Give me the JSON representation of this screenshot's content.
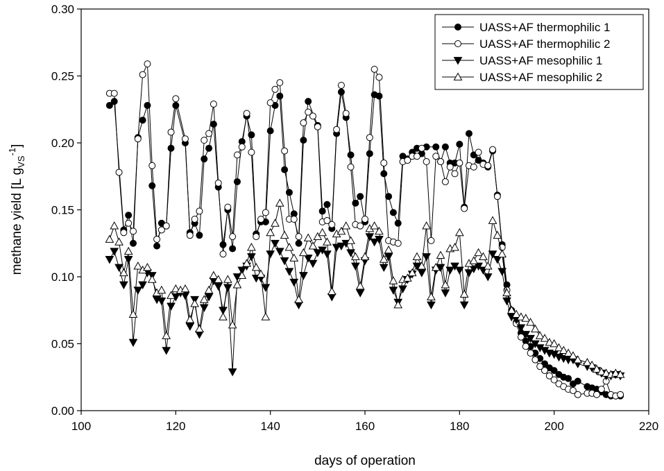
{
  "chart_data": {
    "type": "line",
    "xlabel": "days of operation",
    "ylabel": {
      "main": "methane yield [L g",
      "sub": "VS",
      "sup": "-1",
      "close": "]"
    },
    "xlim": [
      100,
      220
    ],
    "ylim": [
      0,
      0.3
    ],
    "xticks": [
      100,
      120,
      140,
      160,
      180,
      200,
      220
    ],
    "yticks": [
      {
        "value": 0,
        "label": "0.00"
      },
      {
        "value": 0.05,
        "label": "0.05"
      },
      {
        "value": 0.1,
        "label": "0.10"
      },
      {
        "value": 0.15,
        "label": "0.15"
      },
      {
        "value": 0.2,
        "label": "0.20"
      },
      {
        "value": 0.25,
        "label": "0.25"
      },
      {
        "value": 0.3,
        "label": "0.30"
      }
    ],
    "legend": "upper right",
    "series": [
      {
        "name": "UASS+AF thermophilic 1",
        "color": "#000000",
        "marker": "circle-filled",
        "x": [
          106,
          107,
          109,
          110,
          111,
          112,
          113,
          114,
          115,
          116,
          117,
          118,
          119,
          120,
          122,
          123,
          124,
          125,
          126,
          127,
          128,
          129,
          130,
          131,
          132,
          133,
          134,
          135,
          136,
          137,
          138,
          139,
          140,
          141,
          142,
          143,
          144,
          145,
          146,
          147,
          148,
          150,
          151,
          152,
          153,
          154,
          155,
          156,
          157,
          158,
          159,
          160,
          161,
          162,
          163,
          164,
          165,
          166,
          167,
          168,
          169,
          170,
          171,
          172,
          173,
          175,
          176,
          177,
          178,
          179,
          180,
          181,
          182,
          183,
          184,
          185,
          186,
          187,
          188,
          189,
          190,
          191,
          192,
          193,
          194,
          195,
          196,
          197,
          198,
          199,
          200,
          201,
          202,
          203,
          204,
          205,
          207,
          208,
          209,
          210,
          211,
          212,
          213,
          214
        ],
        "values": [
          0.228,
          0.231,
          0.135,
          0.146,
          0.125,
          0.204,
          0.217,
          0.228,
          0.168,
          0.123,
          0.14,
          0.138,
          0.196,
          0.228,
          0.2,
          0.133,
          0.14,
          0.131,
          0.188,
          0.196,
          0.214,
          0.167,
          0.124,
          0.15,
          0.121,
          0.171,
          0.201,
          0.22,
          0.206,
          0.132,
          0.141,
          0.141,
          0.209,
          0.228,
          0.235,
          0.18,
          0.163,
          0.147,
          0.125,
          0.202,
          0.231,
          0.213,
          0.149,
          0.154,
          0.136,
          0.207,
          0.238,
          0.219,
          0.191,
          0.155,
          0.16,
          0.141,
          0.192,
          0.236,
          0.235,
          0.177,
          0.16,
          0.148,
          0.14,
          0.19,
          0.188,
          0.193,
          0.196,
          0.192,
          0.197,
          0.197,
          0.186,
          0.197,
          0.185,
          0.185,
          0.199,
          0.152,
          0.207,
          0.191,
          0.187,
          0.185,
          0.182,
          0.194,
          0.161,
          0.124,
          0.094,
          0.075,
          0.066,
          0.058,
          0.052,
          0.048,
          0.043,
          0.039,
          0.035,
          0.032,
          0.03,
          0.027,
          0.025,
          0.024,
          0.02,
          0.022,
          0.018,
          0.017,
          0.016,
          0.014,
          0.012,
          0.011,
          0.011,
          0.011
        ]
      },
      {
        "name": "UASS+AF thermophilic 2",
        "color": "#000000",
        "marker": "circle-open",
        "x": [
          106,
          107,
          108,
          109,
          110,
          111,
          112,
          113,
          114,
          115,
          116,
          117,
          118,
          119,
          120,
          122,
          123,
          124,
          125,
          126,
          127,
          128,
          129,
          130,
          131,
          132,
          133,
          134,
          135,
          136,
          137,
          138,
          139,
          140,
          141,
          142,
          143,
          144,
          145,
          146,
          147,
          148,
          149,
          150,
          151,
          152,
          153,
          154,
          155,
          156,
          157,
          158,
          159,
          160,
          161,
          162,
          163,
          164,
          165,
          166,
          167,
          168,
          169,
          170,
          171,
          172,
          173,
          174,
          175,
          176,
          177,
          178,
          179,
          180,
          181,
          182,
          183,
          184,
          185,
          186,
          187,
          188,
          189,
          190,
          191,
          192,
          193,
          194,
          195,
          196,
          197,
          198,
          199,
          200,
          201,
          202,
          203,
          204,
          205,
          207,
          208,
          209,
          210,
          211,
          212,
          213,
          214
        ],
        "values": [
          0.237,
          0.237,
          0.178,
          0.133,
          0.14,
          0.134,
          0.203,
          0.251,
          0.259,
          0.183,
          0.128,
          0.135,
          0.138,
          0.208,
          0.233,
          0.203,
          0.131,
          0.143,
          0.149,
          0.202,
          0.207,
          0.229,
          0.17,
          0.117,
          0.152,
          0.13,
          0.191,
          0.197,
          0.222,
          0.193,
          0.13,
          0.143,
          0.148,
          0.23,
          0.24,
          0.245,
          0.194,
          0.143,
          0.143,
          0.13,
          0.215,
          0.223,
          0.22,
          0.212,
          0.141,
          0.142,
          0.139,
          0.21,
          0.243,
          0.222,
          0.182,
          0.139,
          0.138,
          0.143,
          0.204,
          0.255,
          0.249,
          0.185,
          0.127,
          0.126,
          0.125,
          0.186,
          0.187,
          0.19,
          0.19,
          0.196,
          0.186,
          0.127,
          0.19,
          0.186,
          0.171,
          0.182,
          0.177,
          0.185,
          0.151,
          0.183,
          0.182,
          0.193,
          0.184,
          0.183,
          0.195,
          0.16,
          0.122,
          0.09,
          0.074,
          0.065,
          0.055,
          0.048,
          0.043,
          0.038,
          0.033,
          0.03,
          0.026,
          0.023,
          0.02,
          0.018,
          0.016,
          0.015,
          0.012,
          0.013,
          0.013,
          0.012,
          0.016,
          0.022,
          0.012,
          0.011,
          0.012
        ]
      },
      {
        "name": "UASS+AF mesophilic 1",
        "color": "#000000",
        "marker": "triangle-down-filled",
        "x": [
          106,
          107,
          108,
          109,
          110,
          111,
          112,
          113,
          114,
          115,
          116,
          117,
          118,
          119,
          120,
          121,
          122,
          123,
          124,
          125,
          126,
          127,
          128,
          129,
          130,
          131,
          132,
          133,
          134,
          135,
          136,
          137,
          138,
          139,
          140,
          141,
          142,
          143,
          144,
          145,
          146,
          147,
          148,
          149,
          150,
          151,
          152,
          153,
          154,
          155,
          156,
          157,
          158,
          159,
          160,
          161,
          162,
          163,
          164,
          165,
          166,
          167,
          168,
          169,
          170,
          171,
          172,
          173,
          174,
          175,
          176,
          177,
          178,
          179,
          180,
          181,
          182,
          183,
          184,
          185,
          186,
          187,
          188,
          189,
          190,
          191,
          192,
          193,
          194,
          195,
          196,
          197,
          198,
          199,
          200,
          201,
          202,
          203,
          204,
          205,
          207,
          208,
          209,
          210,
          211,
          212,
          213,
          214
        ],
        "values": [
          0.113,
          0.119,
          0.107,
          0.094,
          0.113,
          0.051,
          0.09,
          0.094,
          0.103,
          0.101,
          0.083,
          0.082,
          0.045,
          0.078,
          0.085,
          0.088,
          0.086,
          0.063,
          0.083,
          0.057,
          0.077,
          0.085,
          0.097,
          0.093,
          0.075,
          0.092,
          0.029,
          0.1,
          0.105,
          0.108,
          0.115,
          0.099,
          0.099,
          0.092,
          0.117,
          0.125,
          0.119,
          0.112,
          0.104,
          0.096,
          0.079,
          0.101,
          0.114,
          0.11,
          0.118,
          0.12,
          0.117,
          0.085,
          0.122,
          0.123,
          0.125,
          0.118,
          0.108,
          0.088,
          0.112,
          0.13,
          0.126,
          0.128,
          0.107,
          0.115,
          0.09,
          0.081,
          0.091,
          0.098,
          0.102,
          0.108,
          0.103,
          0.115,
          0.079,
          0.105,
          0.107,
          0.088,
          0.105,
          0.108,
          0.105,
          0.079,
          0.103,
          0.106,
          0.108,
          0.105,
          0.1,
          0.117,
          0.113,
          0.104,
          0.082,
          0.07,
          0.068,
          0.062,
          0.057,
          0.054,
          0.05,
          0.047,
          0.045,
          0.043,
          0.042,
          0.04,
          0.039,
          0.038,
          0.038,
          0.035,
          0.033,
          0.032,
          0.03,
          0.028,
          0.026,
          0.026,
          0.027,
          0.026
        ]
      },
      {
        "name": "UASS+AF mesophilic 2",
        "color": "#000000",
        "marker": "triangle-up-open",
        "x": [
          106,
          107,
          108,
          109,
          110,
          111,
          112,
          113,
          114,
          115,
          116,
          117,
          118,
          119,
          120,
          121,
          122,
          123,
          124,
          125,
          126,
          127,
          128,
          129,
          130,
          131,
          132,
          133,
          134,
          135,
          136,
          137,
          138,
          139,
          140,
          141,
          142,
          143,
          144,
          145,
          146,
          147,
          148,
          149,
          150,
          151,
          152,
          153,
          154,
          155,
          156,
          157,
          158,
          159,
          160,
          161,
          162,
          163,
          164,
          165,
          166,
          167,
          168,
          169,
          170,
          171,
          172,
          173,
          174,
          175,
          176,
          177,
          178,
          179,
          180,
          181,
          182,
          183,
          184,
          185,
          186,
          187,
          188,
          189,
          190,
          191,
          192,
          193,
          194,
          195,
          196,
          197,
          198,
          199,
          200,
          201,
          202,
          203,
          204,
          205,
          207,
          208,
          209,
          210,
          211,
          212,
          213,
          214
        ],
        "values": [
          0.128,
          0.138,
          0.126,
          0.103,
          0.119,
          0.072,
          0.108,
          0.105,
          0.107,
          0.098,
          0.088,
          0.09,
          0.056,
          0.086,
          0.091,
          0.09,
          0.091,
          0.068,
          0.08,
          0.061,
          0.083,
          0.09,
          0.101,
          0.098,
          0.07,
          0.098,
          0.064,
          0.094,
          0.101,
          0.11,
          0.122,
          0.107,
          0.102,
          0.07,
          0.133,
          0.14,
          0.155,
          0.131,
          0.122,
          0.114,
          0.083,
          0.118,
          0.129,
          0.123,
          0.13,
          0.133,
          0.126,
          0.089,
          0.132,
          0.134,
          0.138,
          0.127,
          0.115,
          0.093,
          0.115,
          0.136,
          0.138,
          0.134,
          0.113,
          0.12,
          0.097,
          0.079,
          0.098,
          0.099,
          0.103,
          0.115,
          0.108,
          0.138,
          0.085,
          0.107,
          0.116,
          0.094,
          0.121,
          0.122,
          0.133,
          0.087,
          0.11,
          0.112,
          0.118,
          0.115,
          0.108,
          0.142,
          0.131,
          0.117,
          0.088,
          0.075,
          0.072,
          0.07,
          0.069,
          0.066,
          0.061,
          0.056,
          0.054,
          0.051,
          0.05,
          0.047,
          0.045,
          0.043,
          0.041,
          0.038,
          0.036,
          0.034,
          0.031,
          0.029,
          0.028,
          0.027,
          0.028,
          0.027
        ]
      }
    ]
  }
}
